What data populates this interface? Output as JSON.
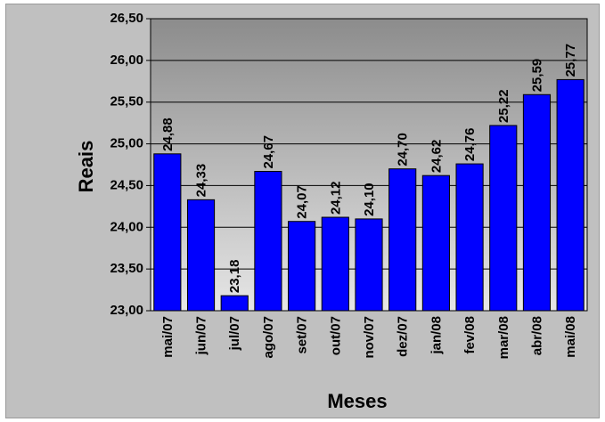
{
  "chart_data": {
    "type": "bar",
    "xlabel": "Meses",
    "ylabel": "Reais",
    "categories": [
      "mai/07",
      "jun/07",
      "jul/07",
      "ago/07",
      "set/07",
      "out/07",
      "nov/07",
      "dez/07",
      "jan/08",
      "fev/08",
      "mar/08",
      "abr/08",
      "mai/08"
    ],
    "values": [
      24.88,
      24.33,
      23.18,
      24.67,
      24.07,
      24.12,
      24.1,
      24.7,
      24.62,
      24.76,
      25.22,
      25.59,
      25.77
    ],
    "value_labels": [
      "24,88",
      "24,33",
      "23,18",
      "24,67",
      "24,07",
      "24,12",
      "24,10",
      "24,70",
      "24,62",
      "24,76",
      "25,22",
      "25,59",
      "25,77"
    ],
    "ylim": [
      23.0,
      26.5
    ],
    "yticks": [
      23.0,
      23.5,
      24.0,
      24.5,
      25.0,
      25.5,
      26.0,
      26.5
    ],
    "ytick_labels": [
      "23,00",
      "23,50",
      "24,00",
      "24,50",
      "25,00",
      "25,50",
      "26,00",
      "26,50"
    ],
    "grid": true,
    "colors": {
      "bar": "#0000ff",
      "plot_background": "#808080",
      "chart_background": "#c0c0c0"
    }
  }
}
